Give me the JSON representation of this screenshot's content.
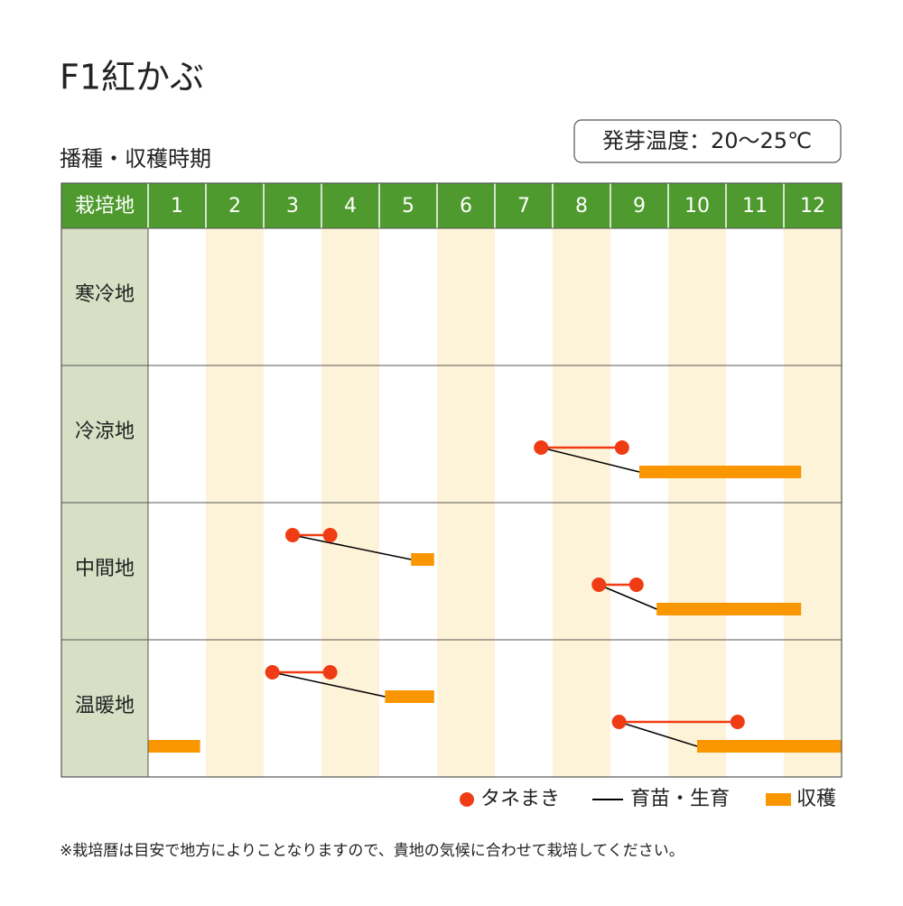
{
  "title": "F1紅かぶ",
  "subtitle": "播種・収穫時期",
  "badge": "発芽温度：20～25℃",
  "table": {
    "corner": "栽培地",
    "months": [
      "1",
      "2",
      "3",
      "4",
      "5",
      "6",
      "7",
      "8",
      "9",
      "10",
      "11",
      "12"
    ],
    "rows": [
      {
        "region": "寒冷地",
        "plans": []
      },
      {
        "region": "冷涼地",
        "plans": [
          {
            "sow": [
              7.8,
              9.2
            ],
            "harvest": [
              9.5,
              12.3
            ]
          }
        ]
      },
      {
        "region": "中間地",
        "plans": [
          {
            "sow": [
              3.5,
              4.15
            ],
            "harvest": [
              5.55,
              5.95
            ]
          },
          {
            "sow": [
              8.8,
              9.45
            ],
            "harvest": [
              9.8,
              12.3
            ]
          }
        ]
      },
      {
        "region": "温暖地",
        "plans": [
          {
            "sow": [
              3.15,
              4.15
            ],
            "harvest": [
              5.1,
              5.95
            ]
          },
          {
            "sow": [
              9.15,
              11.2
            ],
            "harvest": [
              10.5,
              13
            ]
          },
          {
            "harvest": [
              1,
              1.9
            ]
          }
        ]
      }
    ]
  },
  "legend": {
    "sow": "タネまき",
    "grow": "育苗・生育",
    "harvest": "収穫"
  },
  "colors": {
    "sow": "#f03c14",
    "grow": "#000000",
    "harvest": "#fa9600",
    "header": "#4e9a2e",
    "side": "#d7dfc5",
    "shade": "#fdf3d8"
  },
  "note": "※栽培暦は目安で地方によりことなりますので、貴地の気候に合わせて栽培してください。"
}
